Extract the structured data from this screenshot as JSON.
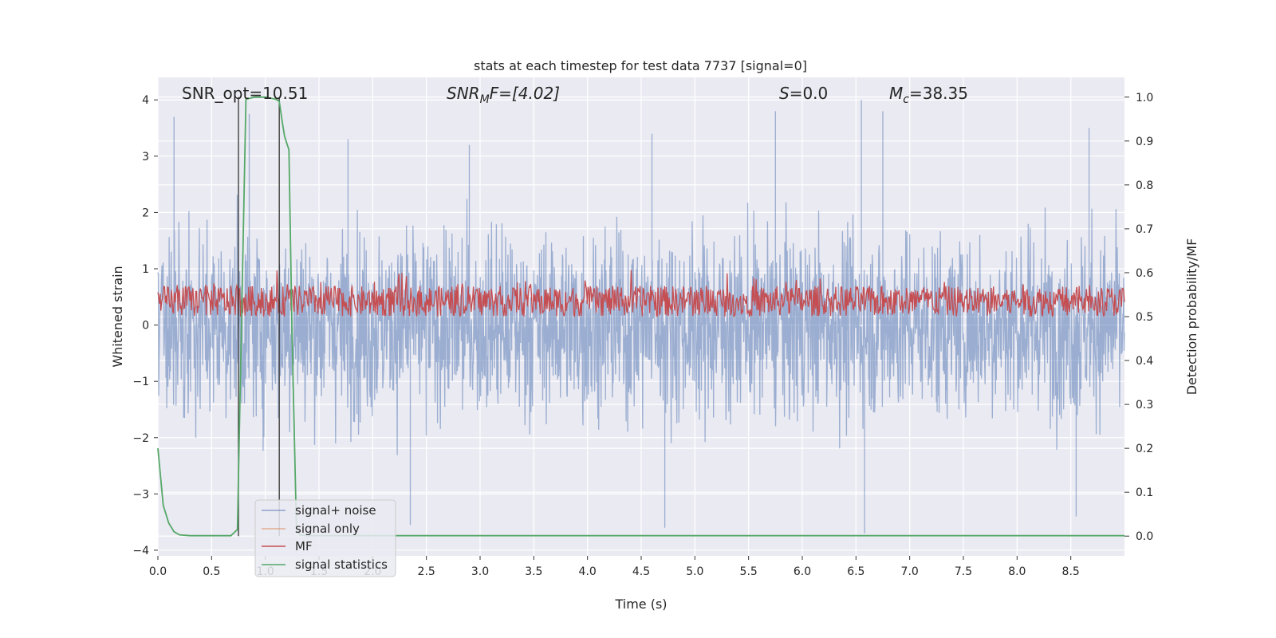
{
  "chart_data": {
    "type": "line",
    "title": "stats at each timestep for test data 7737 [signal=0]",
    "xlabel": "Time (s)",
    "ylabel": "Whitened strain",
    "y2label": "Detection probability/MF",
    "xlim": [
      0.0,
      9.0
    ],
    "ylim": [
      -4.1,
      4.4
    ],
    "y2lim": [
      -0.045,
      1.045
    ],
    "x_ticks": [
      "0.0",
      "0.5",
      "1.0",
      "1.5",
      "2.0",
      "2.5",
      "3.0",
      "3.5",
      "4.0",
      "4.5",
      "5.0",
      "5.5",
      "6.0",
      "6.5",
      "7.0",
      "7.5",
      "8.0",
      "8.5"
    ],
    "y_ticks": [
      "4",
      "3",
      "2",
      "1",
      "0",
      "−1",
      "−2",
      "−3",
      "−4"
    ],
    "y2_ticks": [
      "1.0",
      "0.9",
      "0.8",
      "0.7",
      "0.6",
      "0.5",
      "0.4",
      "0.3",
      "0.2",
      "0.1",
      "0.0"
    ],
    "grid": true,
    "legend_position": "lower-left",
    "colors": {
      "background": "#eaeaf2",
      "grid": "#ffffff",
      "noise": "#4c72b0",
      "signal": "#dd8452",
      "mf": "#c44e52",
      "stat": "#55a868",
      "marker": "#333333"
    },
    "annotations": {
      "snr_opt": "SNR_opt=10.51",
      "snr_mf_label": "SNR",
      "snr_mf_sub": "M",
      "snr_mf_tail": "F=[4.02]",
      "s_label": "S",
      "s_tail": "=0.0",
      "mc_label": "M",
      "mc_sub": "c",
      "mc_tail": "=38.35"
    },
    "series": [
      {
        "name": "signal+ noise",
        "axis": "left",
        "description": "whitened noise, envelope about ±3 with spikes to about ±3.7"
      },
      {
        "name": "signal only",
        "axis": "left",
        "values": []
      },
      {
        "name": "MF",
        "axis": "right",
        "description": "matched-filter output fluctuating about 0.50–0.60"
      },
      {
        "name": "signal statistics",
        "axis": "right",
        "x": [
          0.0,
          0.05,
          0.1,
          0.15,
          0.2,
          0.3,
          0.5,
          0.68,
          0.74,
          0.78,
          0.82,
          0.9,
          1.0,
          1.1,
          1.13,
          1.16,
          1.18,
          1.22,
          1.25,
          1.29,
          1.32,
          1.4,
          9.0
        ],
        "values": [
          0.2,
          0.07,
          0.03,
          0.01,
          0.003,
          0.001,
          0.001,
          0.001,
          0.015,
          0.5,
          0.995,
          1.0,
          1.0,
          0.995,
          0.99,
          0.94,
          0.91,
          0.88,
          0.45,
          0.02,
          0.003,
          0.001,
          0.001
        ]
      }
    ],
    "markers": [
      {
        "name": "detection-start",
        "x": 0.75
      },
      {
        "name": "detection-end",
        "x": 1.13
      }
    ],
    "noise_peaks": [
      {
        "x": 0.15,
        "y": 3.7
      },
      {
        "x": 0.85,
        "y": 3.75
      },
      {
        "x": 1.77,
        "y": 3.3
      },
      {
        "x": 2.9,
        "y": 3.2
      },
      {
        "x": 4.6,
        "y": 3.4
      },
      {
        "x": 5.75,
        "y": 3.8
      },
      {
        "x": 6.55,
        "y": 4.0
      },
      {
        "x": 6.75,
        "y": 3.8
      },
      {
        "x": 8.67,
        "y": 3.5
      },
      {
        "x": 2.35,
        "y": -3.55
      },
      {
        "x": 4.72,
        "y": -3.6
      },
      {
        "x": 6.58,
        "y": -3.7
      },
      {
        "x": 8.55,
        "y": -3.4
      }
    ]
  }
}
